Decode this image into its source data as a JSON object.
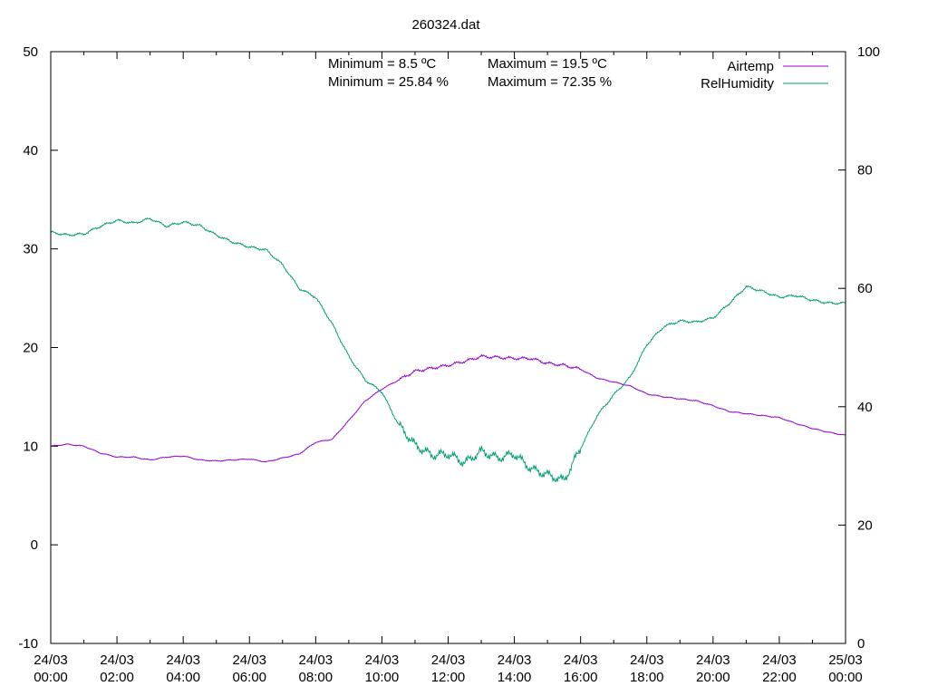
{
  "chart_data": {
    "type": "line",
    "title": "260324.dat",
    "xlabel": "",
    "ylabel": "",
    "y2label": "",
    "x_range": [
      "2024-03-24 00:00",
      "2024-03-25 00:00"
    ],
    "ylim": [
      -10,
      50
    ],
    "y2lim": [
      0,
      100
    ],
    "y_ticks": [
      "-10",
      "0",
      "10",
      "20",
      "30",
      "40",
      "50"
    ],
    "y2_ticks": [
      "0",
      "20",
      "40",
      "60",
      "80",
      "100"
    ],
    "x_ticks": [
      {
        "date": "24/03",
        "time": "00:00"
      },
      {
        "date": "24/03",
        "time": "02:00"
      },
      {
        "date": "24/03",
        "time": "04:00"
      },
      {
        "date": "24/03",
        "time": "06:00"
      },
      {
        "date": "24/03",
        "time": "08:00"
      },
      {
        "date": "24/03",
        "time": "10:00"
      },
      {
        "date": "24/03",
        "time": "12:00"
      },
      {
        "date": "24/03",
        "time": "14:00"
      },
      {
        "date": "24/03",
        "time": "16:00"
      },
      {
        "date": "24/03",
        "time": "18:00"
      },
      {
        "date": "24/03",
        "time": "20:00"
      },
      {
        "date": "24/03",
        "time": "22:00"
      },
      {
        "date": "25/03",
        "time": "00:00"
      }
    ],
    "grid": false,
    "legend_position": "top-right",
    "annotations": {
      "temp_min": "Minimum = 8.5 ºC",
      "temp_max": "Maximum = 19.5 ºC",
      "hum_min": "Minimum = 25.84 %",
      "hum_max": "Maximum = 72.35 %"
    },
    "series": [
      {
        "name": "Airtemp",
        "axis": "left",
        "color": "#9400d3",
        "x_hours": [
          0,
          0.5,
          1,
          1.5,
          2,
          2.5,
          3,
          3.5,
          4,
          4.5,
          5,
          5.5,
          6,
          6.5,
          7,
          7.5,
          8,
          8.5,
          9,
          9.5,
          10,
          10.5,
          11,
          11.5,
          12,
          12.5,
          13,
          13.5,
          14,
          14.5,
          15,
          15.5,
          16,
          16.5,
          17,
          17.5,
          18,
          18.5,
          19,
          19.5,
          20,
          20.5,
          21,
          21.5,
          22,
          22.5,
          23,
          23.5,
          24
        ],
        "values": [
          10.0,
          10.2,
          10.0,
          9.3,
          8.9,
          8.9,
          8.6,
          8.9,
          9.0,
          8.6,
          8.5,
          8.6,
          8.7,
          8.4,
          8.8,
          9.2,
          10.4,
          10.7,
          12.6,
          14.6,
          15.8,
          16.7,
          17.6,
          17.9,
          18.2,
          18.6,
          19.1,
          19.0,
          18.9,
          18.9,
          18.4,
          18.2,
          17.8,
          16.9,
          16.5,
          16.1,
          15.3,
          15.0,
          14.8,
          14.6,
          14.1,
          13.5,
          13.3,
          13.1,
          12.9,
          12.3,
          11.8,
          11.4,
          11.1
        ]
      },
      {
        "name": "RelHumidity",
        "axis": "right",
        "color": "#009e73",
        "x_hours": [
          0,
          0.5,
          1,
          1.5,
          2,
          2.5,
          3,
          3.5,
          4,
          4.5,
          5,
          5.5,
          6,
          6.5,
          7,
          7.5,
          8,
          8.5,
          9,
          9.5,
          10,
          10.5,
          11,
          11.5,
          12,
          12.5,
          13,
          13.5,
          14,
          14.5,
          15,
          15.5,
          16,
          16.5,
          17,
          17.5,
          18,
          18.5,
          19,
          19.5,
          20,
          20.5,
          21,
          21.5,
          22,
          22.5,
          23,
          23.5,
          24
        ],
        "values": [
          69.5,
          69.0,
          69.2,
          70.5,
          71.5,
          71.0,
          71.8,
          70.5,
          71.2,
          70.6,
          69.0,
          67.8,
          67.0,
          66.5,
          64.0,
          60.0,
          58.5,
          54.0,
          48.5,
          44.5,
          42.5,
          37.0,
          33.5,
          31.8,
          32.0,
          30.5,
          32.5,
          31.3,
          32.0,
          29.5,
          28.5,
          27.5,
          33.0,
          38.5,
          42.0,
          45.0,
          50.5,
          53.5,
          54.5,
          54.3,
          55.0,
          57.5,
          60.3,
          59.5,
          58.5,
          58.8,
          58.0,
          57.5,
          57.5
        ]
      }
    ]
  }
}
